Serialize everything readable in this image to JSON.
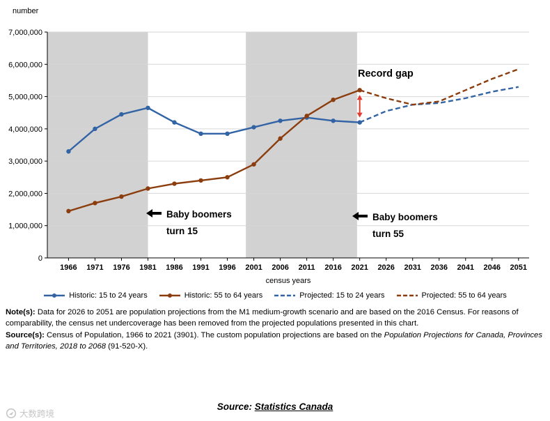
{
  "chart_data": {
    "type": "line",
    "y_axis_title": "number",
    "xlabel": "census years",
    "ylim": [
      0,
      7000000
    ],
    "y_ticks": [
      0,
      1000000,
      2000000,
      3000000,
      4000000,
      5000000,
      6000000,
      7000000
    ],
    "x_domain": [
      1962,
      2053
    ],
    "categories": [
      1966,
      1971,
      1976,
      1981,
      1986,
      1991,
      1996,
      2001,
      2006,
      2011,
      2016,
      2021,
      2026,
      2031,
      2036,
      2041,
      2046,
      2051
    ],
    "shaded_regions": [
      {
        "from": 1962,
        "to": 1981
      },
      {
        "from": 1999.5,
        "to": 2020.5
      }
    ],
    "band_color": "#d2d2d2",
    "grid_color": "#d6d6d6",
    "series": [
      {
        "name": "Historic: 15 to 24 years",
        "color": "#3163a5",
        "style": "solid",
        "markers": true,
        "x": [
          1966,
          1971,
          1976,
          1981,
          1986,
          1991,
          1996,
          2001,
          2006,
          2011,
          2016,
          2021
        ],
        "values": [
          3300000,
          4000000,
          4450000,
          4650000,
          4200000,
          3850000,
          3850000,
          4050000,
          4250000,
          4350000,
          4250000,
          4200000
        ]
      },
      {
        "name": "Historic: 55 to 64 years",
        "color": "#8b3d0e",
        "style": "solid",
        "markers": true,
        "x": [
          1966,
          1971,
          1976,
          1981,
          1986,
          1991,
          1996,
          2001,
          2006,
          2011,
          2016,
          2021
        ],
        "values": [
          1450000,
          1700000,
          1900000,
          2150000,
          2300000,
          2400000,
          2500000,
          2900000,
          3700000,
          4400000,
          4900000,
          5200000
        ]
      },
      {
        "name": "Projected: 15 to 24 years",
        "color": "#3163a5",
        "style": "dashed",
        "markers": false,
        "x": [
          2021,
          2026,
          2031,
          2036,
          2041,
          2046,
          2051
        ],
        "values": [
          4200000,
          4550000,
          4750000,
          4800000,
          4950000,
          5150000,
          5300000
        ]
      },
      {
        "name": "Projected: 55 to 64 years",
        "color": "#8b3d0e",
        "style": "dashed",
        "markers": false,
        "x": [
          2021,
          2026,
          2031,
          2036,
          2041,
          2046,
          2051
        ],
        "values": [
          5200000,
          4950000,
          4750000,
          4850000,
          5200000,
          5550000,
          5850000
        ]
      }
    ],
    "record_gap_arrow": {
      "year": 2021,
      "from": 4350000,
      "to": 5050000,
      "color": "#e03c31"
    }
  },
  "annotations": {
    "record_gap": "Record gap",
    "boomers_15": {
      "line1": "Baby boomers",
      "line2": "turn 15"
    },
    "boomers_55": {
      "line1": "Baby boomers",
      "line2": "turn 55"
    }
  },
  "notes": {
    "note_label": "Note(s):",
    "note_text": "Data for 2026 to 2051 are population projections from the M1 medium-growth scenario and are based on the 2016 Census. For reasons of comparability, the census net undercoverage has been removed from the projected populations presented in this chart.",
    "source_label": "Source(s):",
    "source_text_1": "Census of Population, 1966 to 2021 (3901). The custom population projections are based on the ",
    "source_text_italic": "Population Projections for Canada, Provinces and Territories, 2018 to 2068",
    "source_text_2": " (91-520-X)."
  },
  "footer": {
    "prefix": "Source:",
    "link_text": "Statistics Canada"
  },
  "watermark": {
    "text": "大数跨境"
  }
}
